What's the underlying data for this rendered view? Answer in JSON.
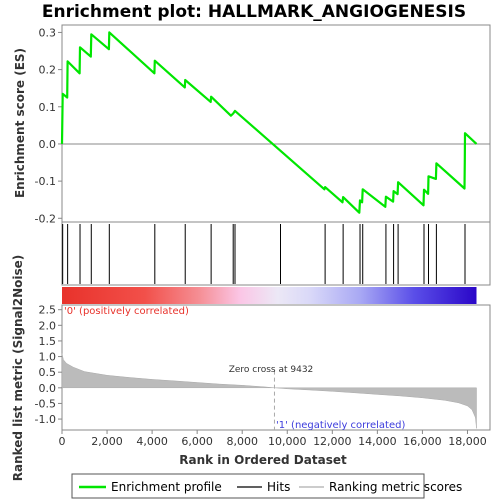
{
  "chart_data": {
    "type": "line",
    "title": "Enrichment plot: HALLMARK_ANGIOGENESIS",
    "x_label": "Rank in Ordered Dataset",
    "x_range": [
      0,
      19000
    ],
    "x_ticks": [
      0,
      2000,
      4000,
      6000,
      8000,
      10000,
      12000,
      14000,
      16000,
      18000
    ],
    "x_tick_labels": [
      "0",
      "2,000",
      "4,000",
      "6,000",
      "8,000",
      "10,000",
      "12,000",
      "14,000",
      "16,000",
      "18,000"
    ],
    "n_genes": 18400,
    "top_panel": {
      "y_label": "Enrichment score (ES)",
      "y_range": [
        -0.21,
        0.32
      ],
      "y_ticks": [
        -0.2,
        -0.1,
        0.0,
        0.1,
        0.2,
        0.3
      ],
      "y_tick_labels": [
        "-0.2",
        "-0.1",
        "0.0",
        "0.1",
        "0.2",
        "0.3"
      ],
      "series": [
        {
          "name": "Enrichment profile",
          "color": "#00e600",
          "points": [
            [
              0,
              0.0
            ],
            [
              30,
              0.135
            ],
            [
              230,
              0.125
            ],
            [
              250,
              0.222
            ],
            [
              780,
              0.19
            ],
            [
              800,
              0.26
            ],
            [
              1280,
              0.235
            ],
            [
              1300,
              0.295
            ],
            [
              2080,
              0.255
            ],
            [
              2100,
              0.3
            ],
            [
              4100,
              0.19
            ],
            [
              4120,
              0.224
            ],
            [
              5450,
              0.152
            ],
            [
              5470,
              0.172
            ],
            [
              6600,
              0.113
            ],
            [
              6620,
              0.127
            ],
            [
              7500,
              0.076
            ],
            [
              7600,
              0.082
            ],
            [
              7680,
              0.089
            ],
            [
              11650,
              -0.122
            ],
            [
              11680,
              -0.116
            ],
            [
              12450,
              -0.157
            ],
            [
              12480,
              -0.143
            ],
            [
              13200,
              -0.185
            ],
            [
              13230,
              -0.152
            ],
            [
              13320,
              -0.157
            ],
            [
              13350,
              -0.122
            ],
            [
              14350,
              -0.169
            ],
            [
              14380,
              -0.142
            ],
            [
              14700,
              -0.155
            ],
            [
              14720,
              -0.127
            ],
            [
              14900,
              -0.135
            ],
            [
              14920,
              -0.103
            ],
            [
              16050,
              -0.165
            ],
            [
              16070,
              -0.123
            ],
            [
              16250,
              -0.134
            ],
            [
              16270,
              -0.087
            ],
            [
              16600,
              -0.094
            ],
            [
              16620,
              -0.052
            ],
            [
              17870,
              -0.12
            ],
            [
              17880,
              -0.045
            ],
            [
              17890,
              0.029
            ],
            [
              18400,
              0.0
            ]
          ]
        }
      ]
    },
    "hits": [
      30,
      250,
      800,
      1300,
      2100,
      4120,
      5470,
      6620,
      7600,
      7680,
      9700,
      11680,
      12480,
      13230,
      13350,
      14380,
      14720,
      14920,
      16070,
      16270,
      16620,
      17890
    ],
    "bottom_panel": {
      "y_label": "Ranked list metric (Signal2Noise)",
      "y_range": [
        -1.35,
        2.65
      ],
      "y_ticks": [
        -1.0,
        -0.5,
        0.0,
        0.5,
        1.0,
        1.5,
        2.0,
        2.5
      ],
      "y_tick_labels": [
        "-1.0",
        "-0.5",
        "0.0",
        "0.5",
        "1.0",
        "1.5",
        "2.0",
        "2.5"
      ],
      "metric_curve": [
        [
          0,
          1.1
        ],
        [
          60,
          0.9
        ],
        [
          200,
          0.78
        ],
        [
          500,
          0.66
        ],
        [
          1000,
          0.52
        ],
        [
          2000,
          0.4
        ],
        [
          3000,
          0.33
        ],
        [
          4000,
          0.27
        ],
        [
          5000,
          0.22
        ],
        [
          6000,
          0.17
        ],
        [
          7000,
          0.12
        ],
        [
          8000,
          0.08
        ],
        [
          9000,
          0.03
        ],
        [
          9432,
          0.0
        ],
        [
          10000,
          -0.03
        ],
        [
          11000,
          -0.07
        ],
        [
          12000,
          -0.11
        ],
        [
          13000,
          -0.16
        ],
        [
          14000,
          -0.21
        ],
        [
          15000,
          -0.26
        ],
        [
          16000,
          -0.32
        ],
        [
          17000,
          -0.4
        ],
        [
          17600,
          -0.48
        ],
        [
          18000,
          -0.58
        ],
        [
          18200,
          -0.7
        ],
        [
          18350,
          -0.95
        ],
        [
          18400,
          -1.3
        ]
      ],
      "zero_cross_rank": 9432,
      "zero_cross_label": "Zero cross at 9432",
      "positive_label": "'0' (positively correlated)",
      "negative_label": "'1' (negatively correlated)"
    },
    "legend": [
      {
        "label": "Enrichment profile",
        "color": "#00e600"
      },
      {
        "label": "Hits",
        "color": "#000000"
      },
      {
        "label": "Ranking metric scores",
        "color": "#bbbbbb"
      }
    ]
  }
}
